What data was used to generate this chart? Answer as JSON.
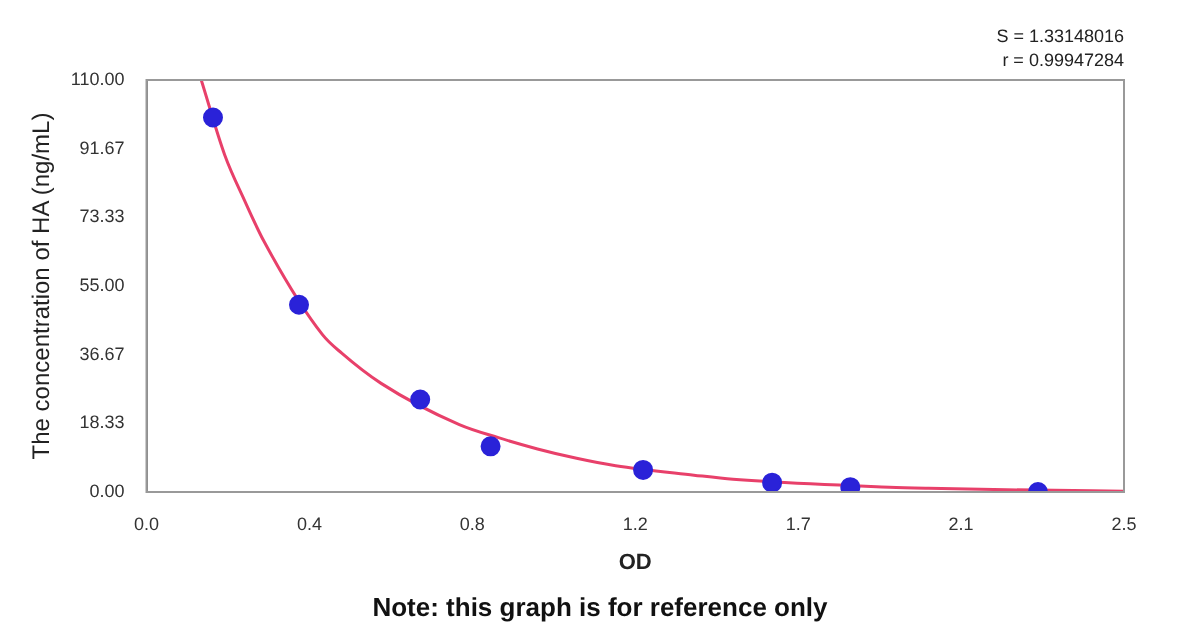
{
  "chart_data": {
    "type": "scatter",
    "xlabel": "OD",
    "ylabel": "The concentration of HA (ng/mL)",
    "annotations": [
      "S = 1.33148016",
      "r = 0.99947284",
      "Note: this graph is for reference only"
    ],
    "xlim": [
      0,
      2.5
    ],
    "xticks": [
      {
        "value": 0,
        "label": "0.0"
      },
      {
        "value": 0.4167,
        "label": "0.4"
      },
      {
        "value": 0.8333,
        "label": "0.8"
      },
      {
        "value": 1.25,
        "label": "1.2"
      },
      {
        "value": 1.6667,
        "label": "1.7"
      },
      {
        "value": 2.0833,
        "label": "2.1"
      },
      {
        "value": 2.5,
        "label": "2.5"
      }
    ],
    "ylim": [
      0,
      110
    ],
    "yticks": [
      {
        "value": 0,
        "label": "0.00"
      },
      {
        "value": 18.33,
        "label": "18.33"
      },
      {
        "value": 36.67,
        "label": "36.67"
      },
      {
        "value": 55,
        "label": "55.00"
      },
      {
        "value": 73.33,
        "label": "73.33"
      },
      {
        "value": 91.67,
        "label": "91.67"
      },
      {
        "value": 110,
        "label": "110.00"
      }
    ],
    "grid": false,
    "legend": false,
    "marker": "circle",
    "series": [
      {
        "color": "#2a22d8",
        "x": [
          0.17,
          0.39,
          0.7,
          0.88,
          1.27,
          1.6,
          1.8,
          2.28
        ],
        "values": [
          100,
          50,
          24.7,
          12.2,
          5.9,
          2.5,
          1.3,
          0
        ]
      },
      {
        "type": "line",
        "color": "#e8406a",
        "marker": "none",
        "line_style": "solid",
        "x": [
          0.14,
          0.2,
          0.25,
          0.3,
          0.45,
          0.5,
          0.6,
          0.8,
          0.9,
          1.0,
          1.1,
          1.2,
          1.4,
          1.5,
          1.9,
          2.0,
          2.2,
          2.5
        ],
        "values": [
          110,
          90,
          78,
          67,
          42,
          37,
          29,
          18,
          14.5,
          11.5,
          9,
          7,
          4.5,
          3.4,
          1.3,
          1,
          0.6,
          0.2
        ]
      }
    ]
  }
}
